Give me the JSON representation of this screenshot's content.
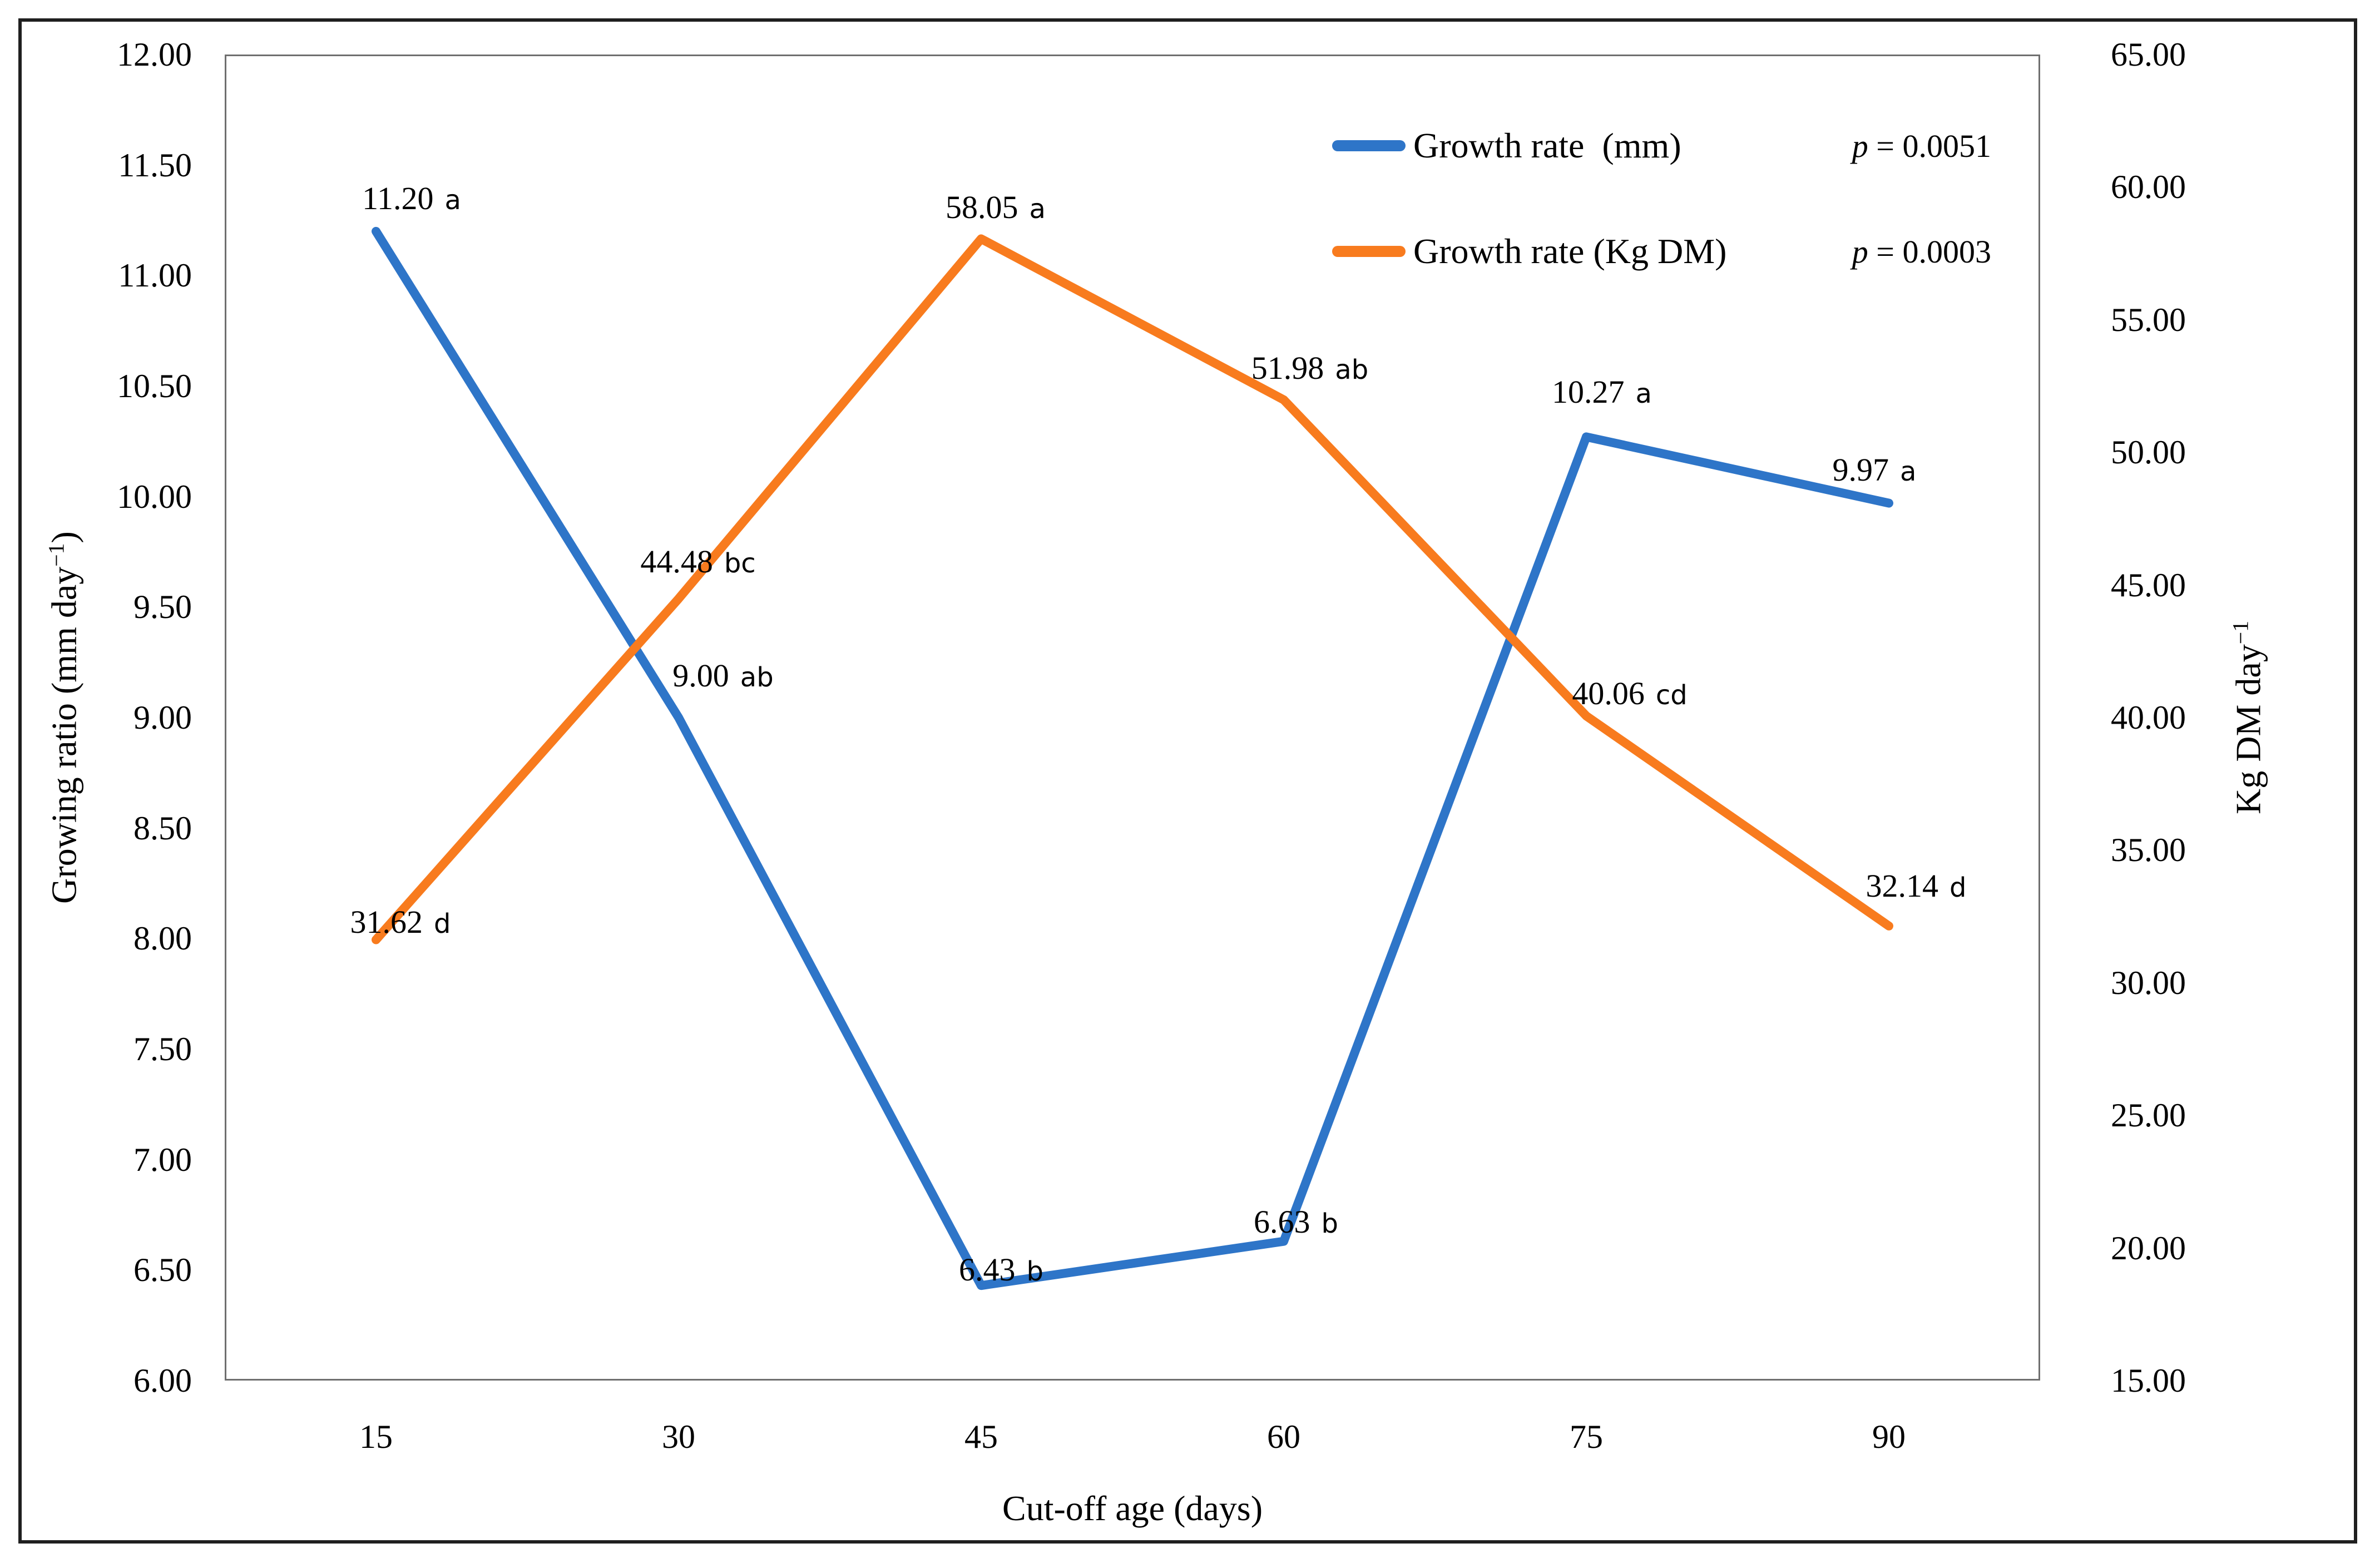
{
  "chart_data": {
    "type": "line",
    "x_categories": [
      "15",
      "30",
      "45",
      "60",
      "75",
      "90"
    ],
    "xlabel": "Cut-off age (days)",
    "left_axis": {
      "label_pre": "Growing ratio (mm day",
      "label_sup": "−1",
      "label_post": ")",
      "min": 6.0,
      "max": 12.0,
      "ticks": [
        "12.00",
        "11.50",
        "11.00",
        "10.50",
        "10.00",
        "9.50",
        "9.00",
        "8.50",
        "8.00",
        "7.50",
        "7.00",
        "6.50",
        "6.00"
      ]
    },
    "right_axis": {
      "label_pre": "Kg DM day",
      "label_sup": "−1",
      "label_post": "",
      "min": 15.0,
      "max": 65.0,
      "ticks": [
        "65.00",
        "60.00",
        "55.00",
        "50.00",
        "45.00",
        "40.00",
        "35.00",
        "30.00",
        "25.00",
        "20.00",
        "15.00"
      ]
    },
    "series": [
      {
        "name": "Growth rate  (mm)",
        "axis": "left",
        "color": "#2E75C8",
        "p_var": "p",
        "p_rest": " = 0.0051",
        "values": [
          11.2,
          9.0,
          6.43,
          6.63,
          10.27,
          9.97
        ],
        "points": [
          {
            "num": "11.20",
            "sig": "a"
          },
          {
            "num": "9.00",
            "sig": "ab"
          },
          {
            "num": "6.43",
            "sig": "b"
          },
          {
            "num": "6.63",
            "sig": "b"
          },
          {
            "num": "10.27",
            "sig": "a"
          },
          {
            "num": "9.97",
            "sig": "a"
          }
        ]
      },
      {
        "name": "Growth rate (Kg DM)",
        "axis": "right",
        "color": "#F87B1E",
        "p_var": "p",
        "p_rest": " = 0.0003",
        "values": [
          31.62,
          44.48,
          58.05,
          51.98,
          40.06,
          32.14
        ],
        "points": [
          {
            "num": "31.62",
            "sig": "d"
          },
          {
            "num": "44.48",
            "sig": "bc"
          },
          {
            "num": "58.05",
            "sig": "a"
          },
          {
            "num": "51.98",
            "sig": "ab"
          },
          {
            "num": "40.06",
            "sig": "cd"
          },
          {
            "num": "32.14",
            "sig": "d"
          }
        ]
      }
    ],
    "grid": false,
    "legend_position": "inside-top-right"
  }
}
